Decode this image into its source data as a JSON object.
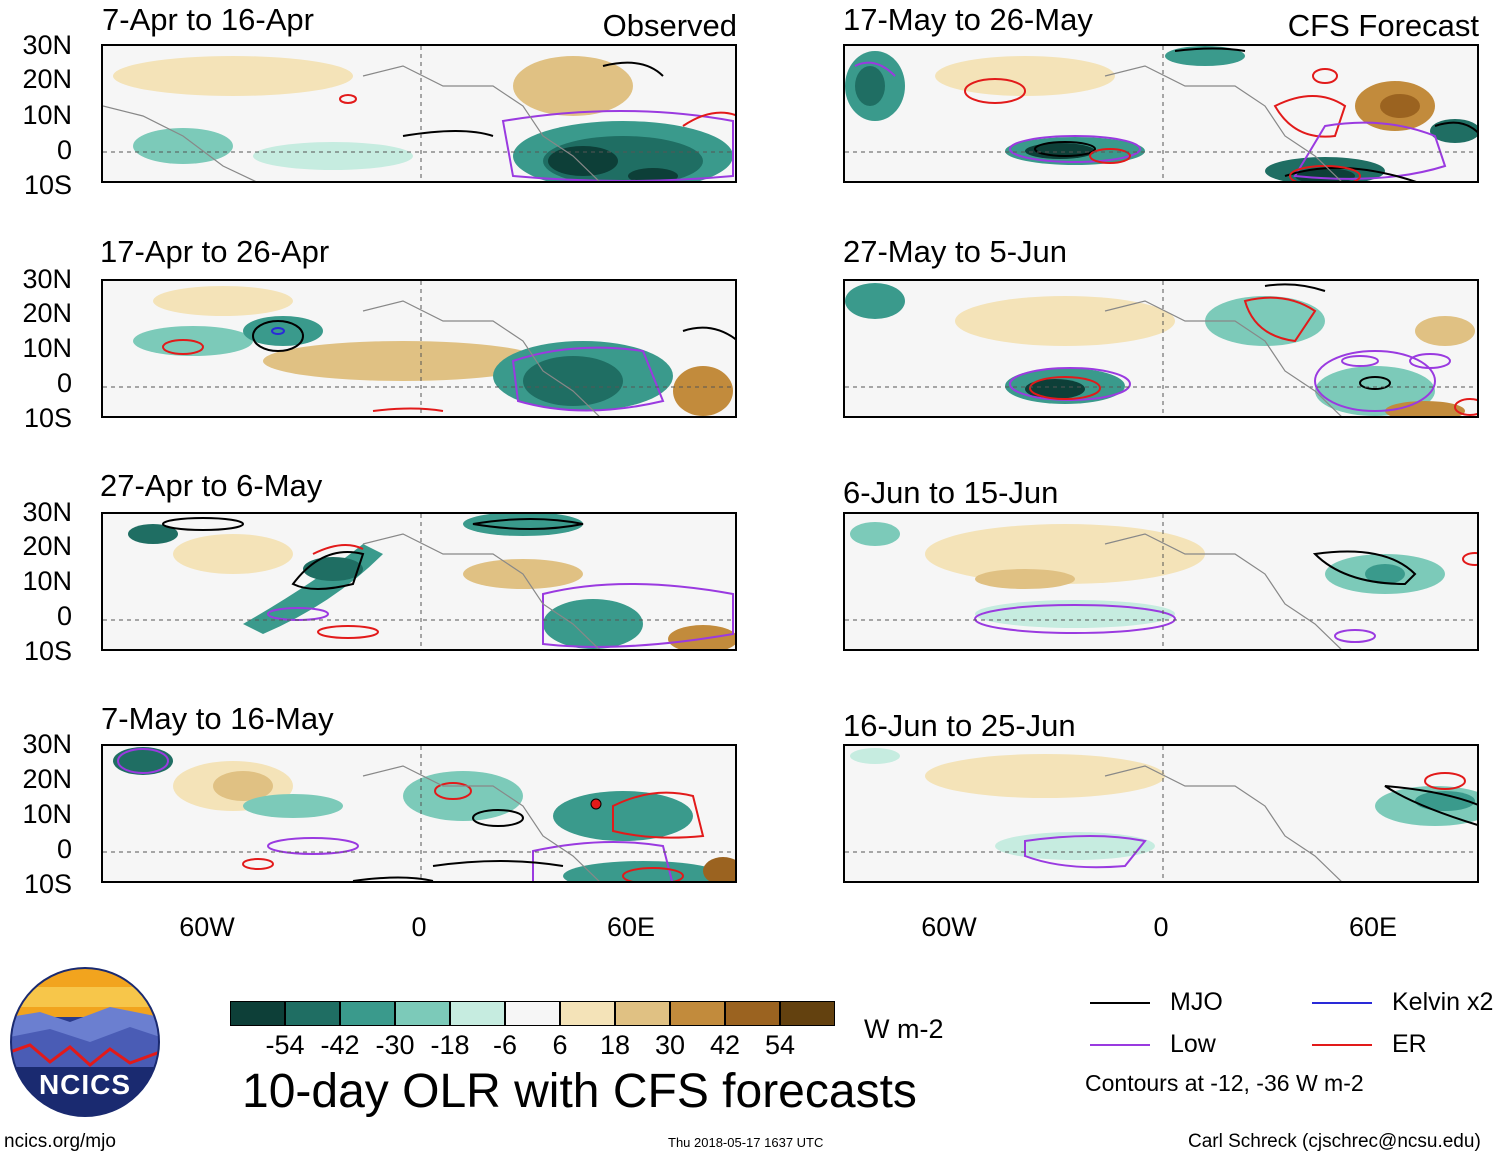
{
  "panels": [
    {
      "title": "7-Apr to 16-Apr",
      "corner": "Observed"
    },
    {
      "title": "17-Apr to 26-Apr",
      "corner": ""
    },
    {
      "title": "27-Apr to 6-May",
      "corner": ""
    },
    {
      "title": "7-May to 16-May",
      "corner": ""
    },
    {
      "title": "17-May to 26-May",
      "corner": "CFS Forecast"
    },
    {
      "title": "27-May to 5-Jun",
      "corner": ""
    },
    {
      "title": "6-Jun to 15-Jun",
      "corner": ""
    },
    {
      "title": "16-Jun to 25-Jun",
      "corner": ""
    }
  ],
  "lat_labels": [
    "30N",
    "20N",
    "10N",
    "0",
    "10S"
  ],
  "lon_labels": [
    "60W",
    "0",
    "60E"
  ],
  "colorbar": {
    "colors": [
      "#0d3f38",
      "#1f6e63",
      "#3a9a8c",
      "#7ccab9",
      "#c6ece0",
      "#f6f6f6",
      "#f4e3b8",
      "#e0c183",
      "#c28b3c",
      "#9b6320",
      "#63410f"
    ],
    "ticks": [
      "-54",
      "-42",
      "-30",
      "-18",
      "-6",
      "6",
      "18",
      "30",
      "42",
      "54"
    ],
    "units": "W m-2"
  },
  "title": "10-day OLR with CFS forecasts",
  "logo_text": "NCICS",
  "legend": {
    "items": [
      {
        "label": "MJO",
        "color": "#000000"
      },
      {
        "label": "Kelvin x2",
        "color": "#2a2ad8"
      },
      {
        "label": "Low",
        "color": "#9a3ae0"
      },
      {
        "label": "ER",
        "color": "#e21a1a"
      }
    ],
    "note": "Contours at -12, -36 W m-2"
  },
  "footer": {
    "left": "ncics.org/mjo",
    "center": "Thu 2018-05-17 1637 UTC",
    "right": "Carl Schreck (cjschrec@ncsu.edu)"
  }
}
